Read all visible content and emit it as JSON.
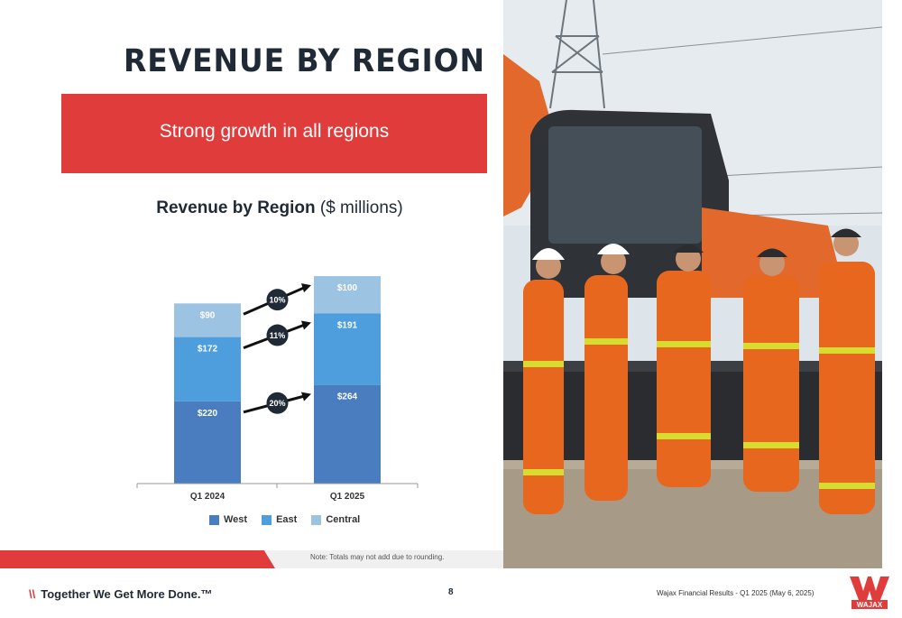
{
  "slide": {
    "title": "REVENUE BY REGION",
    "banner_text": "Strong growth in all regions",
    "chart_title_bold": "Revenue by Region",
    "chart_title_rest": " ($ millions)",
    "note": "Note: Totals may not add due to rounding.",
    "tagline_slashes": "\\\\",
    "tagline": "Together We Get More Done.™",
    "page_number": "8",
    "footer_text": "Wajax Financial Results - Q1 2025 (May 6, 2025)",
    "logo_text": "WAJAX"
  },
  "chart_data": {
    "type": "bar",
    "stacked": true,
    "categories": [
      "Q1 2024",
      "Q1 2025"
    ],
    "series": [
      {
        "name": "West",
        "values": [
          220,
          264
        ],
        "labels": [
          "$220",
          "$264"
        ],
        "color": "#4a7dbf"
      },
      {
        "name": "East",
        "values": [
          172,
          191
        ],
        "labels": [
          "$172",
          "$191"
        ],
        "color": "#4e9ede"
      },
      {
        "name": "Central",
        "values": [
          90,
          100
        ],
        "labels": [
          "$90",
          "$100"
        ],
        "color": "#9dc3e3"
      }
    ],
    "growth_labels": [
      "20%",
      "11%",
      "10%"
    ],
    "legend": [
      "West",
      "East",
      "Central"
    ],
    "legend_position": "bottom",
    "grid": false
  }
}
